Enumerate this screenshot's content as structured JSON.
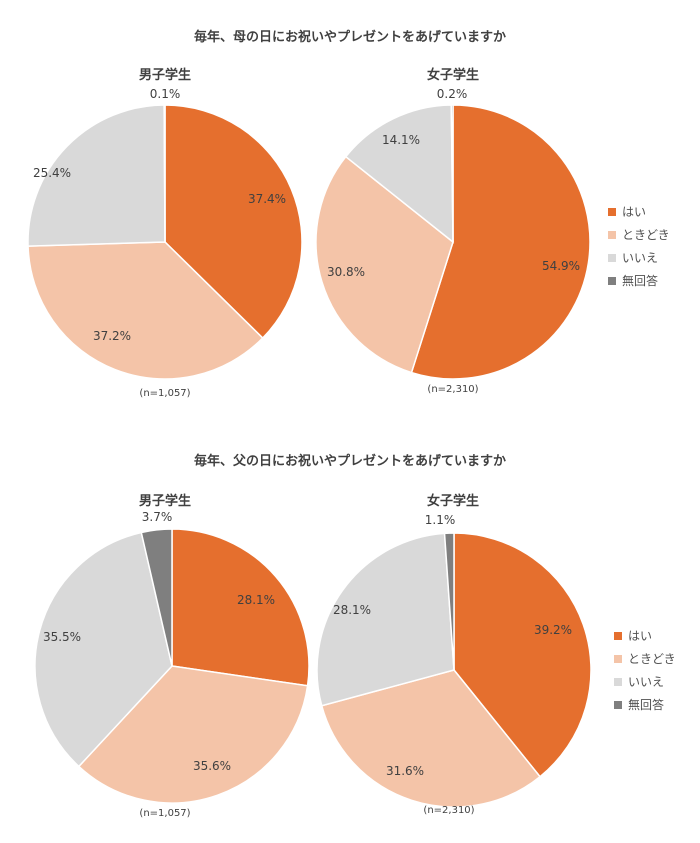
{
  "titles": {
    "mother": "毎年、母の日にお祝いやプレゼントをあげていますか",
    "father": "毎年、父の日にお祝いやプレゼントをあげていますか"
  },
  "legend": {
    "items": [
      {
        "label": "はい",
        "color": "#E56F2E"
      },
      {
        "label": "ときどき",
        "color": "#F4C4A8"
      },
      {
        "label": "いいえ",
        "color": "#D9D9D9"
      },
      {
        "label": "無回答",
        "color": "#7F7F7F"
      }
    ]
  },
  "chart_data": [
    {
      "type": "pie",
      "title": "男子学生",
      "n_label": "(n=1,057)",
      "categories": [
        "はい",
        "ときどき",
        "いいえ",
        "無回答"
      ],
      "values": [
        37.4,
        37.2,
        25.4,
        0.1
      ],
      "labels": [
        "37.4%",
        "37.2%",
        "25.4%",
        "0.1%"
      ],
      "colors": [
        "#E56F2E",
        "#F4C4A8",
        "#D9D9D9",
        "#7F7F7F"
      ]
    },
    {
      "type": "pie",
      "title": "女子学生",
      "n_label": "(n=2,310)",
      "categories": [
        "はい",
        "ときどき",
        "いいえ",
        "無回答"
      ],
      "values": [
        54.9,
        30.8,
        14.1,
        0.2
      ],
      "labels": [
        "54.9%",
        "30.8%",
        "14.1%",
        "0.2%"
      ],
      "colors": [
        "#E56F2E",
        "#F4C4A8",
        "#D9D9D9",
        "#7F7F7F"
      ]
    },
    {
      "type": "pie",
      "title": "男子学生",
      "n_label": "(n=1,057)",
      "categories": [
        "はい",
        "ときどき",
        "いいえ",
        "無回答"
      ],
      "values": [
        28.1,
        35.6,
        35.5,
        3.7
      ],
      "labels": [
        "28.1%",
        "35.6%",
        "35.5%",
        "3.7%"
      ],
      "colors": [
        "#E56F2E",
        "#F4C4A8",
        "#D9D9D9",
        "#7F7F7F"
      ]
    },
    {
      "type": "pie",
      "title": "女子学生",
      "n_label": "(n=2,310)",
      "categories": [
        "はい",
        "ときどき",
        "いいえ",
        "無回答"
      ],
      "values": [
        39.2,
        31.6,
        28.1,
        1.1
      ],
      "labels": [
        "39.2%",
        "31.6%",
        "28.1%",
        "1.1%"
      ],
      "colors": [
        "#E56F2E",
        "#F4C4A8",
        "#D9D9D9",
        "#7F7F7F"
      ]
    }
  ]
}
